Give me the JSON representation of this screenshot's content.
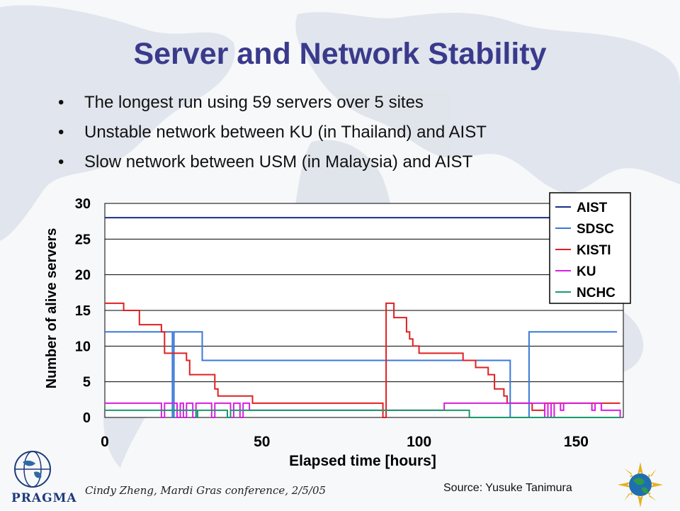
{
  "slide": {
    "title": "Server and Network Stability",
    "bullets": [
      "The longest run using 59 servers over 5 sites",
      "Unstable network between KU (in Thailand) and AIST",
      "Slow network between USM (in Malaysia) and AIST"
    ],
    "footer": "Cindy Zheng, Mardi Gras conference, 2/5/05",
    "source": "Source: Yusuke Tanimura",
    "logo_text": "PRAGMA",
    "colors": {
      "title": "#3a3a8c"
    }
  },
  "chart_data": {
    "type": "line",
    "title": "",
    "xlabel": "Elapsed time [hours]",
    "ylabel": "Number of alive servers",
    "xlim": [
      0,
      165
    ],
    "ylim": [
      0,
      30
    ],
    "xticks": [
      0,
      50,
      100,
      150
    ],
    "yticks": [
      0,
      5,
      10,
      15,
      20,
      25,
      30
    ],
    "grid": "horizontal",
    "legend_position": "top-right",
    "series": [
      {
        "name": "AIST",
        "color": "#1a2f86",
        "points": [
          [
            0,
            28
          ],
          [
            165,
            28
          ]
        ]
      },
      {
        "name": "SDSC",
        "color": "#3a78d8",
        "points": [
          [
            0,
            12
          ],
          [
            21.5,
            12
          ],
          [
            21.5,
            0
          ],
          [
            22,
            0
          ],
          [
            22,
            12
          ],
          [
            31,
            12
          ],
          [
            31,
            8
          ],
          [
            129,
            8
          ],
          [
            129,
            0
          ],
          [
            135,
            0
          ],
          [
            135,
            12
          ],
          [
            163,
            12
          ]
        ]
      },
      {
        "name": "KISTI",
        "color": "#e02020",
        "points": [
          [
            0,
            16
          ],
          [
            6,
            16
          ],
          [
            6,
            15
          ],
          [
            11,
            15
          ],
          [
            11,
            13
          ],
          [
            18,
            13
          ],
          [
            18,
            12
          ],
          [
            19,
            12
          ],
          [
            19,
            9
          ],
          [
            26,
            9
          ],
          [
            26,
            8
          ],
          [
            27,
            8
          ],
          [
            27,
            6
          ],
          [
            35,
            6
          ],
          [
            35,
            4
          ],
          [
            36,
            4
          ],
          [
            36,
            3
          ],
          [
            47,
            3
          ],
          [
            47,
            2
          ],
          [
            88.5,
            2
          ],
          [
            88.5,
            0
          ],
          [
            89.5,
            0
          ],
          [
            89.5,
            16
          ],
          [
            92,
            16
          ],
          [
            92,
            14
          ],
          [
            96,
            14
          ],
          [
            96,
            12
          ],
          [
            97,
            12
          ],
          [
            97,
            11
          ],
          [
            98,
            11
          ],
          [
            98,
            10
          ],
          [
            100,
            10
          ],
          [
            100,
            9
          ],
          [
            114,
            9
          ],
          [
            114,
            8
          ],
          [
            118,
            8
          ],
          [
            118,
            7
          ],
          [
            122,
            7
          ],
          [
            122,
            6
          ],
          [
            124,
            6
          ],
          [
            124,
            4
          ],
          [
            127,
            4
          ],
          [
            127,
            3
          ],
          [
            128,
            3
          ],
          [
            128,
            2
          ],
          [
            136,
            2
          ],
          [
            136,
            1
          ],
          [
            140,
            1
          ],
          [
            140,
            2
          ],
          [
            164,
            2
          ]
        ]
      },
      {
        "name": "KU",
        "color": "#d81ee0",
        "points": [
          [
            0,
            2
          ],
          [
            18,
            2
          ],
          [
            18,
            0
          ],
          [
            19,
            0
          ],
          [
            19,
            2
          ],
          [
            23,
            2
          ],
          [
            23,
            0
          ],
          [
            24,
            0
          ],
          [
            24,
            2
          ],
          [
            25,
            2
          ],
          [
            25,
            0
          ],
          [
            26,
            0
          ],
          [
            26,
            2
          ],
          [
            28,
            2
          ],
          [
            28,
            0
          ],
          [
            29,
            0
          ],
          [
            29,
            2
          ],
          [
            34,
            2
          ],
          [
            34,
            0
          ],
          [
            35,
            0
          ],
          [
            35,
            2
          ],
          [
            40,
            2
          ],
          [
            40,
            0
          ],
          [
            41,
            0
          ],
          [
            41,
            2
          ],
          [
            43,
            2
          ],
          [
            43,
            0
          ],
          [
            44,
            0
          ],
          [
            44,
            2
          ],
          [
            46,
            2
          ],
          [
            46,
            1
          ],
          [
            108,
            1
          ],
          [
            108,
            2
          ],
          [
            140,
            2
          ],
          [
            140,
            0
          ],
          [
            141,
            0
          ],
          [
            141,
            2
          ],
          [
            142,
            2
          ],
          [
            142,
            0
          ],
          [
            143,
            0
          ],
          [
            143,
            2
          ],
          [
            145,
            2
          ],
          [
            145,
            1
          ],
          [
            146,
            1
          ],
          [
            146,
            2
          ],
          [
            155,
            2
          ],
          [
            155,
            1
          ],
          [
            156,
            1
          ],
          [
            156,
            2
          ],
          [
            158,
            2
          ],
          [
            158,
            1
          ],
          [
            164,
            1
          ],
          [
            164,
            0
          ]
        ]
      },
      {
        "name": "NCHC",
        "color": "#1a9a6a",
        "points": [
          [
            0,
            1
          ],
          [
            29,
            1
          ],
          [
            29,
            0
          ],
          [
            29.5,
            0
          ],
          [
            29.5,
            1
          ],
          [
            39,
            1
          ],
          [
            39,
            0
          ],
          [
            40,
            0
          ],
          [
            40,
            1
          ],
          [
            116,
            1
          ],
          [
            116,
            0
          ],
          [
            164,
            0
          ]
        ]
      }
    ]
  }
}
